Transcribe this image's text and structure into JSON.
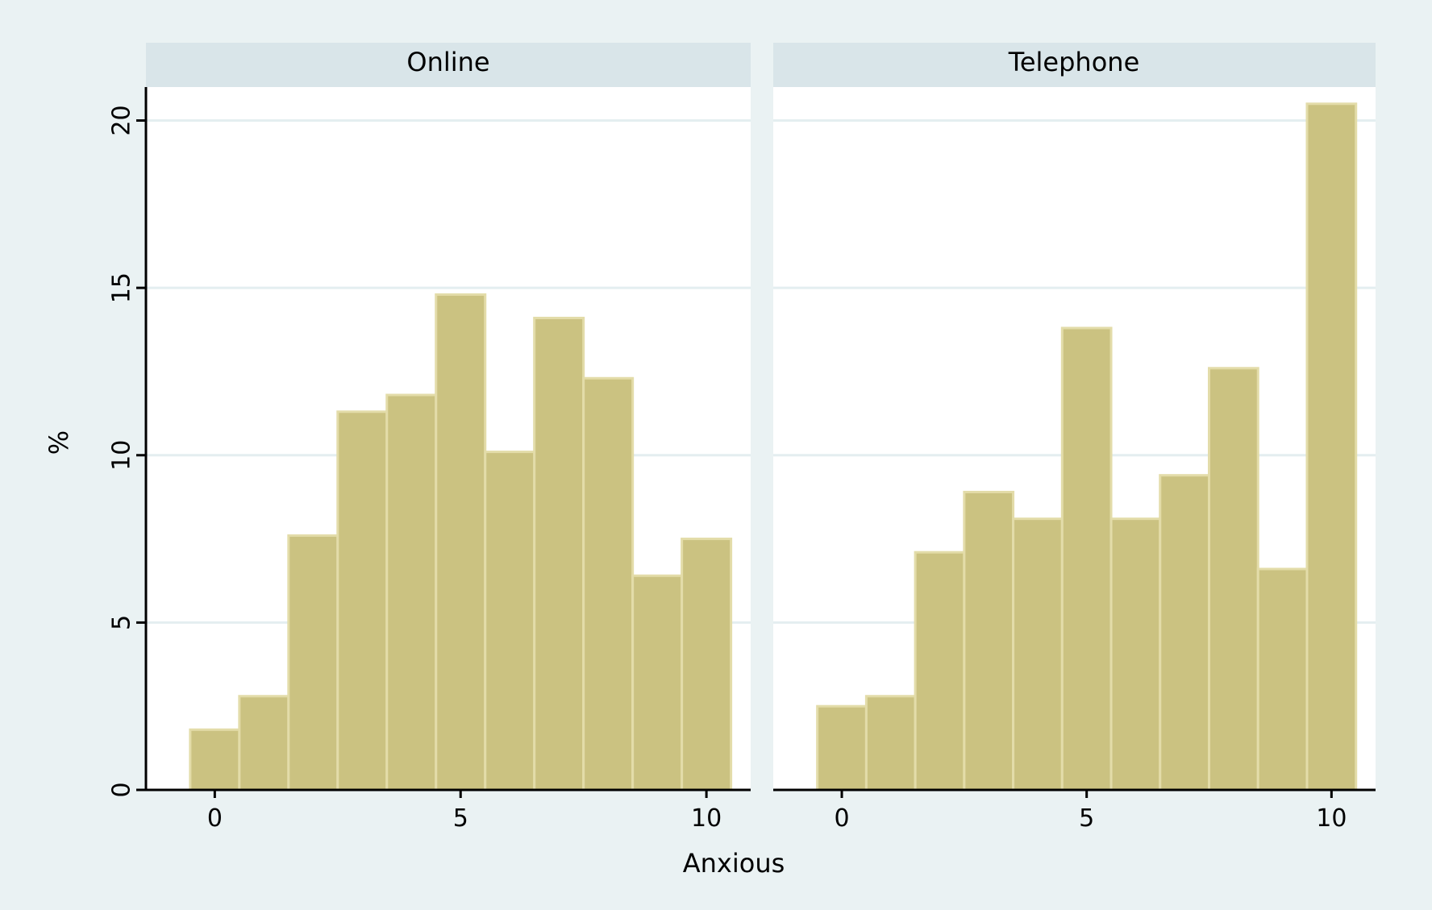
{
  "chart_data": {
    "type": "bar",
    "ylabel": "%",
    "xlabel": "Anxious",
    "ylim": [
      0,
      21
    ],
    "xlim": [
      -1.4,
      10.9
    ],
    "yticks": [
      0,
      5,
      10,
      15,
      20
    ],
    "xticks": [
      0,
      5,
      10
    ],
    "grid": true,
    "colors": {
      "background": "#eaf2f3",
      "plot_area": "#ffffff",
      "panel_header": "#d9e5e9",
      "bar_fill": "#cbc281",
      "bar_edge": "#e3dca9",
      "grid": "#e4eef0",
      "axis": "#000000"
    },
    "panels": [
      {
        "title": "Online",
        "x": [
          0,
          1,
          2,
          3,
          4,
          5,
          6,
          7,
          8,
          9,
          10
        ],
        "values": [
          1.8,
          2.8,
          7.6,
          11.3,
          11.8,
          14.8,
          10.1,
          14.1,
          12.3,
          6.4,
          7.5
        ]
      },
      {
        "title": "Telephone",
        "x": [
          0,
          1,
          2,
          3,
          4,
          5,
          6,
          7,
          8,
          9,
          10
        ],
        "values": [
          2.5,
          2.8,
          7.1,
          8.9,
          8.1,
          13.8,
          8.1,
          9.4,
          12.6,
          6.6,
          20.5
        ]
      }
    ]
  }
}
